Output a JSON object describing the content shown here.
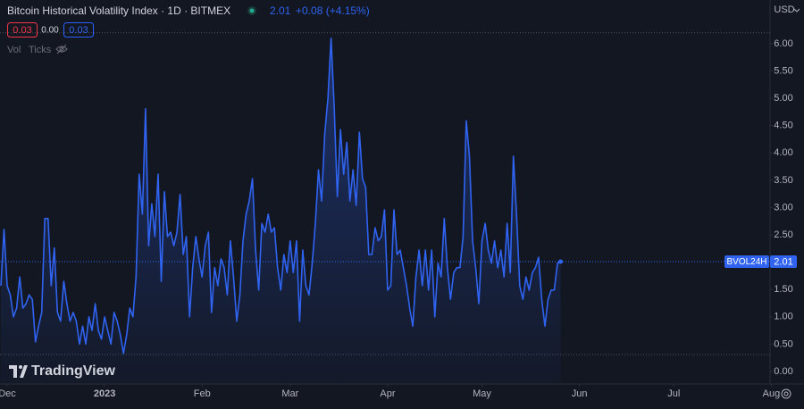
{
  "chart_data": {
    "type": "line",
    "title": "Bitcoin Historical Volatility Index · 1D · BITMEX",
    "change": "+0.08 (+4.15%)",
    "quote": {
      "sell": "0.03",
      "spread": "0.00",
      "buy": "0.03"
    },
    "toolbar": [
      "Vol",
      "Ticks"
    ],
    "currency": "USD",
    "logo": "TradingView",
    "x": [
      -2,
      -1,
      0,
      1,
      2,
      3,
      4,
      5,
      6,
      7,
      8,
      9,
      10,
      11,
      12,
      13,
      14,
      15,
      16,
      17,
      18,
      19,
      20,
      21,
      22,
      23,
      24,
      25,
      26,
      27,
      28,
      29,
      30,
      31,
      32,
      33,
      34,
      35,
      36,
      37,
      38,
      39,
      40,
      41,
      42,
      43,
      44,
      45,
      46,
      47,
      48,
      49,
      50,
      51,
      52,
      53,
      54,
      55,
      56,
      57,
      58,
      59,
      60,
      61,
      62,
      63,
      64,
      65,
      66,
      67,
      68,
      69,
      70,
      71,
      72,
      73,
      74,
      75,
      76,
      77,
      78,
      79,
      80,
      81,
      82,
      83,
      84,
      85,
      86,
      87,
      88,
      89,
      90,
      91,
      92,
      93,
      94,
      95,
      96,
      97,
      98,
      99,
      100,
      101,
      102,
      103,
      104,
      105,
      106,
      107,
      108,
      109,
      110,
      111,
      112,
      113,
      114,
      115,
      116,
      117,
      118,
      119,
      120,
      121,
      122,
      123,
      124,
      125,
      126,
      127,
      128,
      129,
      130,
      131,
      132,
      133,
      134,
      135,
      136,
      137,
      138,
      139,
      140,
      141,
      142,
      143,
      144,
      145,
      146,
      147,
      148,
      149,
      150,
      151,
      152,
      153,
      154,
      155,
      156,
      157,
      158,
      159,
      160,
      161,
      162,
      163,
      164,
      165,
      166,
      167,
      168,
      169,
      170,
      171,
      172,
      173,
      174,
      175,
      176
    ],
    "xlim": [
      -2.27,
      242.6
    ],
    "xticks": [
      {
        "value": 0,
        "label": "Dec"
      },
      {
        "value": 31,
        "label": "2023"
      },
      {
        "value": 62,
        "label": "Feb"
      },
      {
        "value": 90,
        "label": "Mar"
      },
      {
        "value": 121,
        "label": "Apr"
      },
      {
        "value": 151,
        "label": "May"
      },
      {
        "value": 182,
        "label": "Jun"
      },
      {
        "value": 212,
        "label": "Jul"
      },
      {
        "value": 243,
        "label": "Aug"
      }
    ],
    "ylim": [
      -0.23,
      6.8
    ],
    "yticks": [
      {
        "value": 0,
        "label": "0.00"
      },
      {
        "value": 0.5,
        "label": "0.50"
      },
      {
        "value": 1,
        "label": "1.00"
      },
      {
        "value": 1.5,
        "label": "1.50"
      },
      {
        "value": 2,
        "label": "2.00"
      },
      {
        "value": 2.5,
        "label": "2.50"
      },
      {
        "value": 3,
        "label": "3.00"
      },
      {
        "value": 3.5,
        "label": "3.50"
      },
      {
        "value": 4,
        "label": "4.00"
      },
      {
        "value": 4.5,
        "label": "4.50"
      },
      {
        "value": 5,
        "label": "5.00"
      },
      {
        "value": 5.5,
        "label": "5.50"
      },
      {
        "value": 6,
        "label": "6.00"
      }
    ],
    "hlines": [
      6.2,
      0.31
    ],
    "grid": false,
    "series": [
      {
        "name": "BVOL24H",
        "color": "#2f63f0",
        "values": [
          1.57,
          2.6,
          1.57,
          1.4,
          1.0,
          1.16,
          1.73,
          1.16,
          1.24,
          1.4,
          1.32,
          0.54,
          0.83,
          1.08,
          2.8,
          2.8,
          1.57,
          2.26,
          1.08,
          0.92,
          1.65,
          1.24,
          0.92,
          1.08,
          0.92,
          0.5,
          0.83,
          0.5,
          1.0,
          0.75,
          1.24,
          0.75,
          0.59,
          1.0,
          0.75,
          0.5,
          1.08,
          0.92,
          0.67,
          0.33,
          0.67,
          1.16,
          1.0,
          1.73,
          3.61,
          2.88,
          4.81,
          2.3,
          3.07,
          2.47,
          3.61,
          1.65,
          3.29,
          2.47,
          2.55,
          2.3,
          2.55,
          3.24,
          2.14,
          2.47,
          1.0,
          1.9,
          2.47,
          2.06,
          1.73,
          2.3,
          2.55,
          1.08,
          1.9,
          1.57,
          2.06,
          1.9,
          1.4,
          2.39,
          1.73,
          0.92,
          1.4,
          2.39,
          2.88,
          3.12,
          3.53,
          2.22,
          1.49,
          2.71,
          2.55,
          2.88,
          2.55,
          2.63,
          1.9,
          1.49,
          2.14,
          1.81,
          2.39,
          1.81,
          2.39,
          0.92,
          2.22,
          1.57,
          1.4,
          1.98,
          2.71,
          3.69,
          3.12,
          4.35,
          5.0,
          6.1,
          4.84,
          3.2,
          4.43,
          3.61,
          4.19,
          3.12,
          3.69,
          3.04,
          4.38,
          3.53,
          3.37,
          2.14,
          2.14,
          2.63,
          2.39,
          2.47,
          2.96,
          1.49,
          1.57,
          2.96,
          2.14,
          2.22,
          1.9,
          1.57,
          1.16,
          0.83,
          1.73,
          2.22,
          1.57,
          2.22,
          1.49,
          2.22,
          1.0,
          1.98,
          1.73,
          2.8,
          1.9,
          1.32,
          1.81,
          1.9,
          1.9,
          2.47,
          4.59,
          3.94,
          2.39,
          1.9,
          1.24,
          2.39,
          2.71,
          2.22,
          1.98,
          2.39,
          1.9,
          2.22,
          1.73,
          2.71,
          1.81,
          3.94,
          2.84,
          1.57,
          1.32,
          1.73,
          1.49,
          1.81,
          1.9,
          2.09,
          1.32,
          0.83,
          1.32,
          1.49,
          1.49,
          1.98,
          2.01
        ]
      }
    ]
  }
}
